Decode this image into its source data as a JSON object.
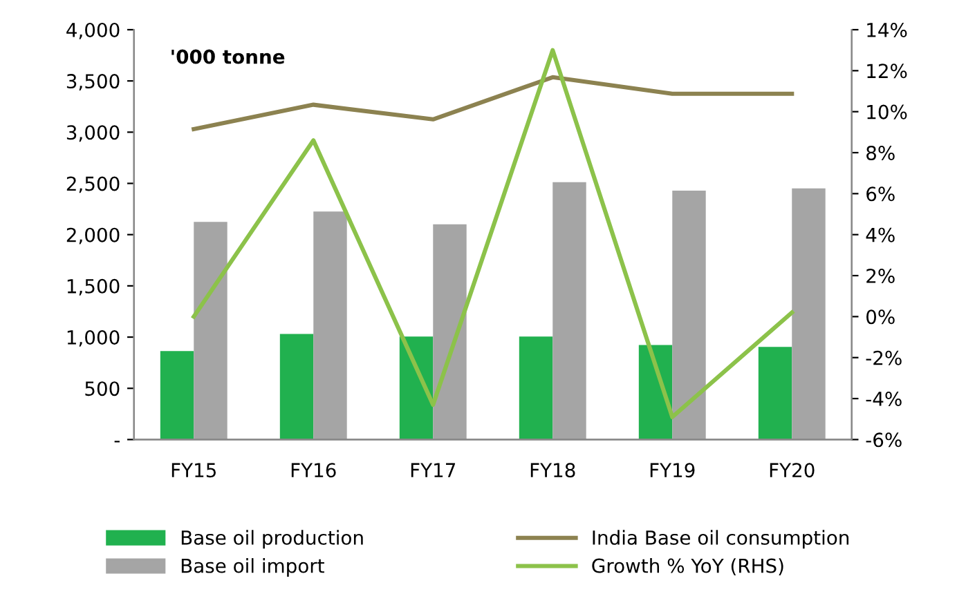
{
  "chart_data": {
    "type": "bar",
    "categories": [
      "FY15",
      "FY16",
      "FY17",
      "FY18",
      "FY19",
      "FY20"
    ],
    "series": [
      {
        "name": "Base oil production",
        "color": "#21b14f",
        "values": [
          863,
          1030,
          1006,
          1006,
          923,
          905
        ]
      },
      {
        "name": "Base oil import",
        "color": "#a5a5a5",
        "values": [
          2125,
          2226,
          2101,
          2512,
          2429,
          2452
        ]
      },
      {
        "name": "India Base oil consumption",
        "type": "line",
        "color": "#8c8250",
        "values": [
          3030,
          3268,
          3125,
          3536,
          3375,
          3375
        ]
      },
      {
        "name": "Growth % YoY (RHS)",
        "type": "line",
        "axis": "y2",
        "color": "#8cc24a",
        "values": [
          0,
          8.6,
          -4.3,
          13.0,
          -4.9,
          0.2
        ]
      }
    ],
    "ylim": [
      0,
      4000
    ],
    "yticks": [
      {
        "value": 0,
        "label": "-"
      },
      {
        "value": 500,
        "label": "500"
      },
      {
        "value": 1000,
        "label": "1,000"
      },
      {
        "value": 1500,
        "label": "1,500"
      },
      {
        "value": 2000,
        "label": "2,000"
      },
      {
        "value": 2500,
        "label": "2,500"
      },
      {
        "value": 3000,
        "label": "3,000"
      },
      {
        "value": 3500,
        "label": "3,500"
      },
      {
        "value": 4000,
        "label": "4,000"
      }
    ],
    "y2lim": [
      -6,
      14
    ],
    "y2ticks": [
      {
        "value": -6,
        "label": "-6%"
      },
      {
        "value": -4,
        "label": "-4%"
      },
      {
        "value": -2,
        "label": "-2%"
      },
      {
        "value": 0,
        "label": "0%"
      },
      {
        "value": 2,
        "label": "2%"
      },
      {
        "value": 4,
        "label": "4%"
      },
      {
        "value": 6,
        "label": "6%"
      },
      {
        "value": 8,
        "label": "8%"
      },
      {
        "value": 10,
        "label": "10%"
      },
      {
        "value": 12,
        "label": "12%"
      },
      {
        "value": 14,
        "label": "14%"
      }
    ],
    "annotations": [
      "'000 tonne"
    ],
    "grid": false,
    "legend": "bottom",
    "marker": "none",
    "line_style": "solid"
  }
}
